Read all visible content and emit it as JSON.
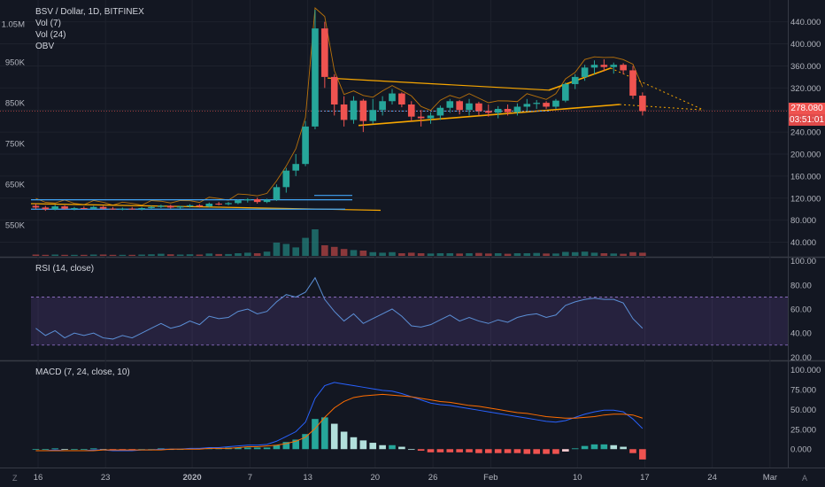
{
  "chart_data": {
    "type": "candlestick",
    "symbol_title": "BSV / Dollar, 1D, BITFINEX",
    "overlays": [
      "Vol (7)",
      "Vol (24)",
      "OBV"
    ],
    "price_axis": {
      "ticks": [
        "440.000",
        "400.000",
        "360.000",
        "320.000",
        "280.000",
        "240.000",
        "200.000",
        "160.000",
        "120.000",
        "80.000",
        "40.000"
      ],
      "tick_values": [
        440,
        400,
        360,
        320,
        280,
        240,
        200,
        160,
        120,
        80,
        40
      ],
      "range": [
        20,
        470
      ]
    },
    "volume_axis": {
      "ticks": [
        "1.05M",
        "950K",
        "850K",
        "750K",
        "650K",
        "550K"
      ]
    },
    "time_axis": {
      "labels": [
        "16",
        "23",
        "2020",
        "7",
        "13",
        "20",
        "26",
        "Feb",
        "10",
        "17",
        "24",
        "Mar"
      ]
    },
    "last_price": "278.080",
    "countdown": "03:51:01",
    "candles": [
      {
        "d": "Dec 16",
        "o": 106,
        "h": 110,
        "l": 100,
        "c": 103
      },
      {
        "d": "Dec 17",
        "o": 103,
        "h": 106,
        "l": 97,
        "c": 100
      },
      {
        "d": "Dec 18",
        "o": 100,
        "h": 108,
        "l": 98,
        "c": 105
      },
      {
        "d": "Dec 19",
        "o": 105,
        "h": 107,
        "l": 99,
        "c": 101
      },
      {
        "d": "Dec 20",
        "o": 101,
        "h": 104,
        "l": 98,
        "c": 102
      },
      {
        "d": "Dec 21",
        "o": 102,
        "h": 105,
        "l": 100,
        "c": 101
      },
      {
        "d": "Dec 22",
        "o": 101,
        "h": 106,
        "l": 100,
        "c": 104
      },
      {
        "d": "Dec 23",
        "o": 104,
        "h": 106,
        "l": 99,
        "c": 101
      },
      {
        "d": "Dec 24",
        "o": 101,
        "h": 104,
        "l": 99,
        "c": 100
      },
      {
        "d": "Dec 25",
        "o": 100,
        "h": 103,
        "l": 98,
        "c": 101
      },
      {
        "d": "Dec 26",
        "o": 101,
        "h": 104,
        "l": 99,
        "c": 100
      },
      {
        "d": "Dec 27",
        "o": 100,
        "h": 104,
        "l": 98,
        "c": 102
      },
      {
        "d": "Dec 28",
        "o": 102,
        "h": 106,
        "l": 100,
        "c": 104
      },
      {
        "d": "Dec 29",
        "o": 104,
        "h": 108,
        "l": 102,
        "c": 106
      },
      {
        "d": "Dec 30",
        "o": 106,
        "h": 108,
        "l": 101,
        "c": 103
      },
      {
        "d": "Dec 31",
        "o": 103,
        "h": 106,
        "l": 100,
        "c": 105
      },
      {
        "d": "Jan 1",
        "o": 105,
        "h": 109,
        "l": 103,
        "c": 107
      },
      {
        "d": "Jan 2",
        "o": 107,
        "h": 109,
        "l": 103,
        "c": 105
      },
      {
        "d": "Jan 3",
        "o": 105,
        "h": 112,
        "l": 103,
        "c": 110
      },
      {
        "d": "Jan 4",
        "o": 110,
        "h": 113,
        "l": 107,
        "c": 109
      },
      {
        "d": "Jan 5",
        "o": 109,
        "h": 113,
        "l": 107,
        "c": 111
      },
      {
        "d": "Jan 6",
        "o": 111,
        "h": 118,
        "l": 109,
        "c": 116
      },
      {
        "d": "Jan 7",
        "o": 116,
        "h": 120,
        "l": 112,
        "c": 118
      },
      {
        "d": "Jan 8",
        "o": 118,
        "h": 121,
        "l": 110,
        "c": 113
      },
      {
        "d": "Jan 9",
        "o": 113,
        "h": 119,
        "l": 111,
        "c": 117
      },
      {
        "d": "Jan 10",
        "o": 117,
        "h": 145,
        "l": 115,
        "c": 140
      },
      {
        "d": "Jan 11",
        "o": 140,
        "h": 175,
        "l": 130,
        "c": 170
      },
      {
        "d": "Jan 12",
        "o": 170,
        "h": 200,
        "l": 160,
        "c": 182
      },
      {
        "d": "Jan 13",
        "o": 182,
        "h": 260,
        "l": 178,
        "c": 250
      },
      {
        "d": "Jan 14",
        "o": 250,
        "h": 462,
        "l": 245,
        "c": 428
      },
      {
        "d": "Jan 15",
        "o": 428,
        "h": 440,
        "l": 320,
        "c": 340
      },
      {
        "d": "Jan 16",
        "o": 340,
        "h": 345,
        "l": 270,
        "c": 290
      },
      {
        "d": "Jan 17",
        "o": 290,
        "h": 305,
        "l": 250,
        "c": 262
      },
      {
        "d": "Jan 18",
        "o": 262,
        "h": 305,
        "l": 255,
        "c": 297
      },
      {
        "d": "Jan 19",
        "o": 297,
        "h": 300,
        "l": 240,
        "c": 260
      },
      {
        "d": "Jan 20",
        "o": 260,
        "h": 300,
        "l": 255,
        "c": 280
      },
      {
        "d": "Jan 21",
        "o": 280,
        "h": 305,
        "l": 270,
        "c": 296
      },
      {
        "d": "Jan 22",
        "o": 296,
        "h": 318,
        "l": 290,
        "c": 310
      },
      {
        "d": "Jan 23",
        "o": 310,
        "h": 312,
        "l": 285,
        "c": 290
      },
      {
        "d": "Jan 24",
        "o": 290,
        "h": 296,
        "l": 260,
        "c": 268
      },
      {
        "d": "Jan 25",
        "o": 268,
        "h": 280,
        "l": 250,
        "c": 265
      },
      {
        "d": "Jan 26",
        "o": 265,
        "h": 276,
        "l": 255,
        "c": 270
      },
      {
        "d": "Jan 27",
        "o": 270,
        "h": 288,
        "l": 262,
        "c": 284
      },
      {
        "d": "Jan 28",
        "o": 284,
        "h": 300,
        "l": 275,
        "c": 296
      },
      {
        "d": "Jan 29",
        "o": 296,
        "h": 298,
        "l": 272,
        "c": 280
      },
      {
        "d": "Jan 30",
        "o": 280,
        "h": 300,
        "l": 270,
        "c": 292
      },
      {
        "d": "Jan 31",
        "o": 292,
        "h": 295,
        "l": 270,
        "c": 278
      },
      {
        "d": "Feb 1",
        "o": 278,
        "h": 290,
        "l": 268,
        "c": 275
      },
      {
        "d": "Feb 2",
        "o": 275,
        "h": 287,
        "l": 265,
        "c": 282
      },
      {
        "d": "Feb 3",
        "o": 282,
        "h": 290,
        "l": 270,
        "c": 276
      },
      {
        "d": "Feb 4",
        "o": 276,
        "h": 292,
        "l": 270,
        "c": 286
      },
      {
        "d": "Feb 5",
        "o": 286,
        "h": 300,
        "l": 278,
        "c": 291
      },
      {
        "d": "Feb 6",
        "o": 291,
        "h": 298,
        "l": 282,
        "c": 293
      },
      {
        "d": "Feb 7",
        "o": 293,
        "h": 296,
        "l": 282,
        "c": 286
      },
      {
        "d": "Feb 8",
        "o": 286,
        "h": 300,
        "l": 282,
        "c": 297
      },
      {
        "d": "Feb 9",
        "o": 297,
        "h": 330,
        "l": 294,
        "c": 327
      },
      {
        "d": "Feb 10",
        "o": 327,
        "h": 345,
        "l": 318,
        "c": 340
      },
      {
        "d": "Feb 11",
        "o": 340,
        "h": 362,
        "l": 333,
        "c": 357
      },
      {
        "d": "Feb 12",
        "o": 357,
        "h": 370,
        "l": 345,
        "c": 362
      },
      {
        "d": "Feb 13",
        "o": 362,
        "h": 372,
        "l": 350,
        "c": 358
      },
      {
        "d": "Feb 14",
        "o": 358,
        "h": 366,
        "l": 346,
        "c": 362
      },
      {
        "d": "Feb 15",
        "o": 362,
        "h": 365,
        "l": 345,
        "c": 352
      },
      {
        "d": "Feb 16",
        "o": 352,
        "h": 360,
        "l": 300,
        "c": 306
      },
      {
        "d": "Feb 17",
        "o": 306,
        "h": 312,
        "l": 270,
        "c": 278
      }
    ],
    "volume_rel": [
      0.05,
      0.04,
      0.05,
      0.04,
      0.04,
      0.04,
      0.05,
      0.05,
      0.04,
      0.04,
      0.04,
      0.05,
      0.06,
      0.08,
      0.06,
      0.05,
      0.06,
      0.05,
      0.09,
      0.07,
      0.07,
      0.1,
      0.12,
      0.1,
      0.16,
      0.5,
      0.45,
      0.32,
      0.68,
      1.0,
      0.4,
      0.34,
      0.26,
      0.22,
      0.2,
      0.14,
      0.12,
      0.14,
      0.1,
      0.12,
      0.1,
      0.09,
      0.1,
      0.1,
      0.09,
      0.1,
      0.11,
      0.09,
      0.1,
      0.08,
      0.1,
      0.1,
      0.11,
      0.09,
      0.09,
      0.15,
      0.14,
      0.16,
      0.12,
      0.1,
      0.09,
      0.08,
      0.14,
      0.12
    ],
    "rsi": {
      "label": "RSI (14, close)",
      "ticks": [
        "100.00",
        "80.00",
        "60.00",
        "40.00",
        "20.00"
      ],
      "tick_values": [
        100,
        80,
        60,
        40,
        20
      ],
      "band": [
        30,
        70
      ],
      "values": [
        44,
        38,
        42,
        36,
        40,
        38,
        40,
        36,
        35,
        38,
        36,
        40,
        44,
        48,
        44,
        46,
        50,
        47,
        54,
        52,
        53,
        58,
        60,
        56,
        58,
        66,
        72,
        70,
        74,
        86,
        68,
        58,
        50,
        56,
        48,
        52,
        56,
        60,
        54,
        46,
        45,
        47,
        51,
        55,
        50,
        53,
        50,
        48,
        51,
        49,
        53,
        55,
        56,
        53,
        55,
        63,
        66,
        68,
        69,
        68,
        68,
        65,
        52,
        44
      ]
    },
    "macd": {
      "label": "MACD (7, 24, close, 10)",
      "ticks": [
        "100.000",
        "75.000",
        "50.000",
        "25.000",
        "0.000"
      ],
      "tick_values": [
        100,
        75,
        50,
        25,
        0
      ],
      "macd_line": [
        -2,
        -2,
        -1,
        -2,
        -2,
        -2,
        -1,
        -1,
        -2,
        -2,
        -2,
        -1,
        -1,
        0,
        0,
        0,
        1,
        1,
        2,
        2,
        3,
        4,
        5,
        5,
        6,
        10,
        16,
        22,
        34,
        64,
        80,
        84,
        82,
        80,
        78,
        76,
        74,
        73,
        70,
        66,
        62,
        58,
        56,
        55,
        53,
        51,
        49,
        47,
        45,
        43,
        41,
        39,
        37,
        35,
        34,
        36,
        40,
        44,
        47,
        49,
        49,
        47,
        38,
        26
      ],
      "signal_line": [
        -2,
        -2,
        -2,
        -2,
        -2,
        -2,
        -2,
        -1,
        -1,
        -1,
        -1,
        -1,
        -1,
        -1,
        0,
        0,
        0,
        0,
        1,
        1,
        1,
        2,
        3,
        3,
        4,
        5,
        7,
        10,
        15,
        26,
        40,
        52,
        60,
        65,
        67,
        68,
        69,
        68,
        67,
        66,
        64,
        62,
        60,
        59,
        57,
        55,
        54,
        52,
        50,
        48,
        46,
        45,
        43,
        41,
        40,
        39,
        39,
        40,
        41,
        43,
        44,
        44,
        43,
        39
      ],
      "histogram": [
        0,
        0,
        1,
        0,
        0,
        0,
        1,
        0,
        -1,
        -1,
        -1,
        0,
        0,
        1,
        0,
        0,
        1,
        1,
        1,
        1,
        2,
        2,
        2,
        2,
        2,
        5,
        9,
        12,
        19,
        38,
        40,
        32,
        22,
        15,
        11,
        8,
        5,
        5,
        3,
        0,
        -2,
        -4,
        -4,
        -4,
        -4,
        -4,
        -5,
        -5,
        -5,
        -5,
        -5,
        -6,
        -6,
        -6,
        -6,
        -3,
        1,
        4,
        6,
        6,
        5,
        3,
        -5,
        -13
      ]
    }
  }
}
